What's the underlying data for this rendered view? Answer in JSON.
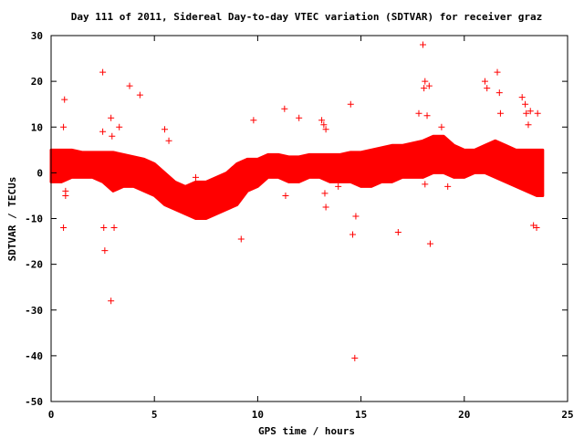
{
  "chart_data": {
    "type": "scatter",
    "title": "Day 111 of 2011, Sidereal Day-to-day VTEC variation (SDTVAR) for receiver graz",
    "xlabel": "GPS time / hours",
    "ylabel": "SDTVAR / TECUs",
    "xlim": [
      0,
      25
    ],
    "ylim": [
      -50,
      30
    ],
    "xticks": [
      "0",
      "5",
      "10",
      "15",
      "20",
      "25"
    ],
    "yticks": [
      "-50",
      "-40",
      "-30",
      "-20",
      "-10",
      "0",
      "10",
      "20",
      "30"
    ],
    "grid": false,
    "legend": "none",
    "marker": "+",
    "color": "#ff0000",
    "band": {
      "x": [
        0.0,
        0.5,
        1.0,
        1.5,
        2.0,
        2.5,
        3.0,
        3.5,
        4.0,
        4.5,
        5.0,
        5.5,
        6.0,
        6.5,
        7.0,
        7.5,
        8.0,
        8.5,
        9.0,
        9.5,
        10.0,
        10.5,
        11.0,
        11.5,
        12.0,
        12.5,
        13.0,
        13.5,
        14.0,
        14.5,
        15.0,
        15.5,
        16.0,
        16.5,
        17.0,
        17.5,
        18.0,
        18.5,
        19.0,
        19.5,
        20.0,
        20.5,
        21.0,
        21.5,
        22.0,
        22.5,
        23.0,
        23.5,
        23.8
      ],
      "upper": [
        5,
        5,
        5,
        4.5,
        4.5,
        4.5,
        4.5,
        4,
        3.5,
        3,
        2,
        0,
        -2,
        -3,
        -2,
        -2,
        -1,
        0,
        2,
        3,
        3,
        4,
        4,
        3.5,
        3.5,
        4,
        4,
        4,
        4,
        4.5,
        4.5,
        5,
        5.5,
        6,
        6,
        6.5,
        7,
        8,
        8,
        6,
        5,
        5,
        6,
        7,
        6,
        5,
        5,
        5,
        5
      ],
      "lower": [
        -2,
        -2,
        -1,
        -1,
        -1,
        -2,
        -4,
        -3,
        -3,
        -4,
        -5,
        -7,
        -8,
        -9,
        -10,
        -10,
        -9,
        -8,
        -7,
        -4,
        -3,
        -1,
        -1,
        -2,
        -2,
        -1,
        -1,
        -2,
        -2,
        -2,
        -3,
        -3,
        -2,
        -2,
        -1,
        -1,
        -1,
        0,
        0,
        -1,
        -1,
        0,
        0,
        -1,
        -2,
        -3,
        -4,
        -5,
        -5
      ]
    },
    "outliers": {
      "x": [
        0.6,
        0.6,
        0.65,
        0.7,
        0.7,
        2.5,
        2.5,
        2.55,
        2.6,
        2.9,
        2.9,
        2.95,
        3.05,
        3.3,
        3.8,
        4.3,
        5.5,
        5.7,
        7.0,
        9.2,
        9.8,
        11.3,
        11.35,
        12.0,
        13.1,
        13.2,
        13.25,
        13.3,
        13.3,
        13.9,
        14.5,
        14.6,
        14.7,
        14.75,
        16.8,
        17.8,
        18.0,
        18.05,
        18.1,
        18.1,
        18.2,
        18.3,
        18.35,
        18.9,
        19.2,
        21.0,
        21.1,
        21.6,
        21.7,
        21.75,
        22.8,
        22.95,
        23.0,
        23.1,
        23.2,
        23.35,
        23.5,
        23.55
      ],
      "y": [
        10,
        -12,
        16,
        -4,
        -5,
        22,
        9,
        -12,
        -17,
        -28,
        12,
        8,
        -12,
        10,
        19,
        17,
        9.5,
        7,
        -1,
        -14.5,
        11.5,
        14,
        -5,
        12,
        11.5,
        10.5,
        -4.5,
        -7.5,
        9.5,
        -3,
        15,
        -13.5,
        -40.5,
        -9.5,
        -13,
        13,
        28,
        18.5,
        20,
        -2.5,
        12.5,
        19,
        -15.5,
        10,
        -3,
        20,
        18.5,
        22,
        17.5,
        13,
        16.5,
        15,
        13,
        10.5,
        13.5,
        -11.5,
        -12,
        13
      ]
    }
  }
}
